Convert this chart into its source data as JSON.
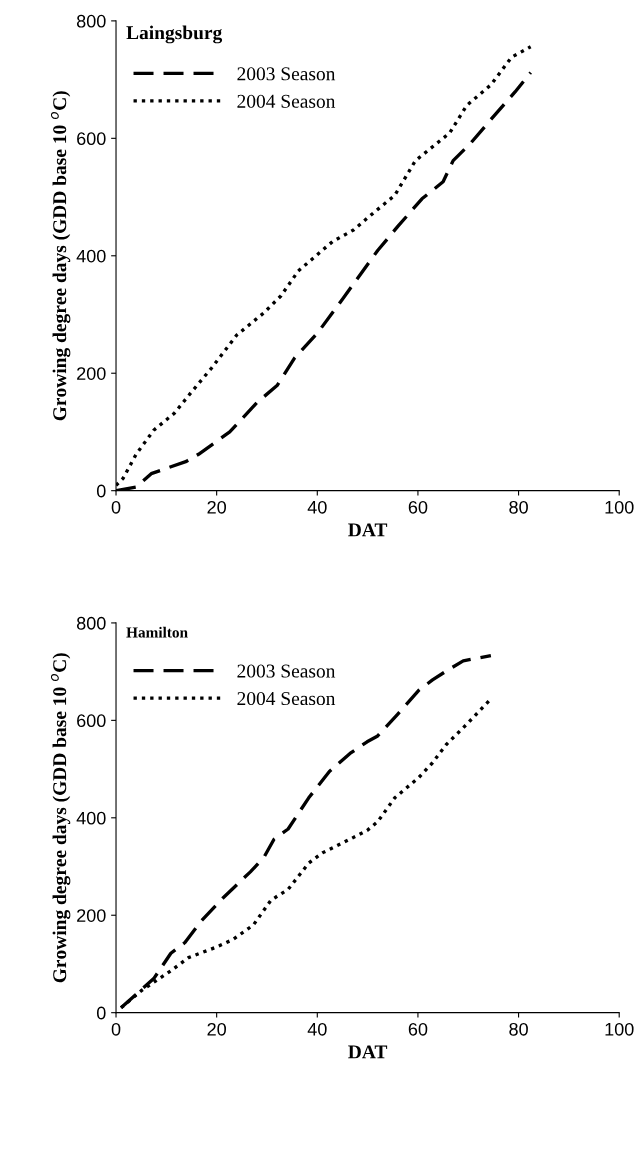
{
  "chart_data": [
    {
      "type": "line",
      "title": "Laingsburg",
      "xlabel": "DAT",
      "ylabel": "Growing degree days (GDD base 10 $^{o}$C)",
      "xlim": [
        0,
        100
      ],
      "xticks": [
        0,
        20,
        40,
        60,
        80,
        100
      ],
      "ylim": [
        0,
        800
      ],
      "yticks": [
        0,
        200,
        400,
        600,
        800
      ],
      "legend": "top left",
      "grid": false,
      "series": [
        {
          "name": "2003 Season",
          "color": "#000000",
          "line_style": "dashed",
          "x": [
            0,
            4,
            7,
            14,
            16.4,
            22.6,
            28,
            32,
            35.5,
            40,
            45,
            52,
            56,
            60.8,
            65,
            67,
            70.4,
            74.5,
            79.3,
            82.4
          ],
          "values": [
            0,
            6,
            29,
            50,
            62,
            100,
            150,
            179,
            226,
            268,
            326,
            409,
            450,
            497,
            526,
            562,
            591,
            632,
            679,
            712
          ]
        },
        {
          "name": "2004 Season",
          "color": "#000000",
          "line_style": "dotted",
          "x": [
            0,
            1.4,
            4,
            7.5,
            11.6,
            15,
            19,
            24,
            29.4,
            32.8,
            36.2,
            43,
            47.2,
            51.3,
            55.4,
            59.5,
            66.3,
            69.7,
            74.5,
            78.6,
            82.4
          ],
          "values": [
            9,
            21,
            62,
            103,
            132,
            168,
            209,
            265,
            303,
            332,
            374,
            424,
            444,
            474,
            503,
            562,
            609,
            656,
            691,
            738,
            756
          ]
        }
      ]
    },
    {
      "type": "line",
      "title": "Hamilton",
      "xlabel": "DAT",
      "ylabel": "Growing degree days (GDD base 10 $^{o}$C)",
      "xlim": [
        0,
        100
      ],
      "xticks": [
        0,
        20,
        40,
        60,
        80,
        100
      ],
      "ylim": [
        0,
        800
      ],
      "yticks": [
        0,
        200,
        400,
        600,
        800
      ],
      "legend": "top left",
      "grid": false,
      "series": [
        {
          "name": "2003 Season",
          "color": "#000000",
          "line_style": "dashed",
          "x": [
            1,
            7.5,
            10.9,
            13.7,
            17,
            21.2,
            26.7,
            29.4,
            31.4,
            34.2,
            38.3,
            42.4,
            46.5,
            49.9,
            52,
            56,
            60.2,
            62.9,
            65.6,
            69,
            74.5
          ],
          "values": [
            10,
            70,
            122,
            144,
            189,
            235,
            289,
            319,
            356,
            377,
            441,
            495,
            532,
            556,
            568,
            613,
            662,
            683,
            701,
            722,
            733
          ]
        },
        {
          "name": "2004 Season",
          "color": "#000000",
          "line_style": "dotted",
          "x": [
            1,
            5,
            10.9,
            14.4,
            19.8,
            23.2,
            27.3,
            30.8,
            34.2,
            38.3,
            41,
            46.5,
            49.9,
            52,
            55.4,
            60.2,
            62.9,
            65.6,
            69.7,
            74.5
          ],
          "values": [
            10,
            45,
            86,
            113,
            134,
            150,
            180,
            231,
            253,
            307,
            328,
            356,
            374,
            392,
            441,
            483,
            513,
            550,
            592,
            644
          ]
        }
      ]
    }
  ]
}
